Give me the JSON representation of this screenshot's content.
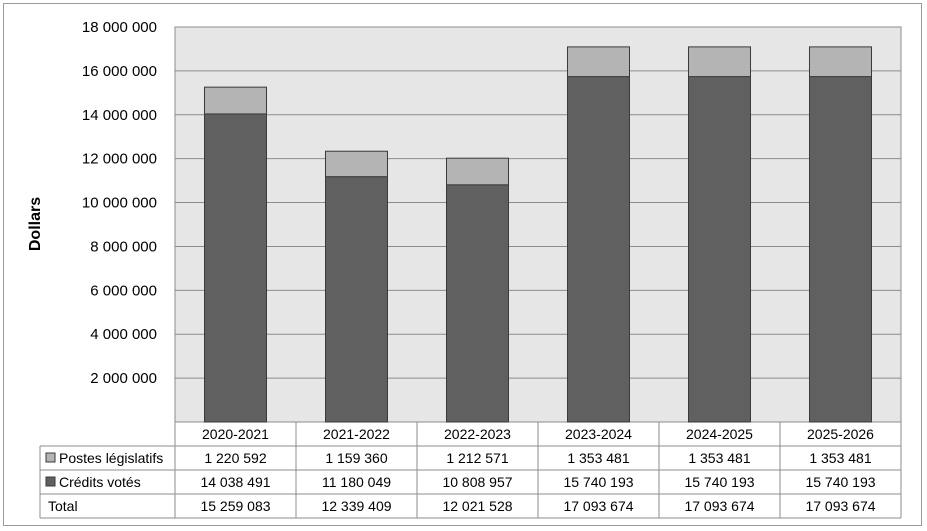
{
  "chart_data": {
    "type": "bar",
    "stacked": true,
    "categories": [
      "2020-2021",
      "2021-2022",
      "2022-2023",
      "2023-2024",
      "2024-2025",
      "2025-2026"
    ],
    "series": [
      {
        "name": "Crédits votés",
        "values": [
          14038491,
          11180049,
          10808957,
          15740193,
          15740193,
          15740193
        ],
        "color": "#606060"
      },
      {
        "name": "Postes législatifs",
        "values": [
          1220592,
          1159360,
          1212571,
          1353481,
          1353481,
          1353481
        ],
        "color": "#b4b4b4"
      }
    ],
    "table": {
      "rows": [
        {
          "label": "Postes législatifs",
          "swatch": "#b4b4b4",
          "cells": [
            "1 220 592",
            "1 159 360",
            "1 212 571",
            "1 353 481",
            "1 353 481",
            "1 353 481"
          ]
        },
        {
          "label": "Crédits votés",
          "swatch": "#606060",
          "cells": [
            "14 038 491",
            "11 180 049",
            "10 808 957",
            "15 740 193",
            "15 740 193",
            "15 740 193"
          ]
        },
        {
          "label": "Total",
          "swatch": "",
          "cells": [
            "15 259 083",
            "12 339 409",
            "12 021 528",
            "17 093 674",
            "17 093 674",
            "17 093 674"
          ]
        }
      ]
    },
    "ylabel": "Dollars",
    "ylim": [
      0,
      18000000
    ],
    "yticks": [
      2000000,
      4000000,
      6000000,
      8000000,
      10000000,
      12000000,
      14000000,
      16000000,
      18000000
    ],
    "ytick_labels": [
      "2 000 000",
      "4 000 000",
      "6 000 000",
      "8 000 000",
      "10 000 000",
      "12 000 000",
      "14 000 000",
      "16 000 000",
      "18 000 000"
    ],
    "grid": true,
    "plot_background": "#e6e6e6",
    "legend": "data-table"
  }
}
